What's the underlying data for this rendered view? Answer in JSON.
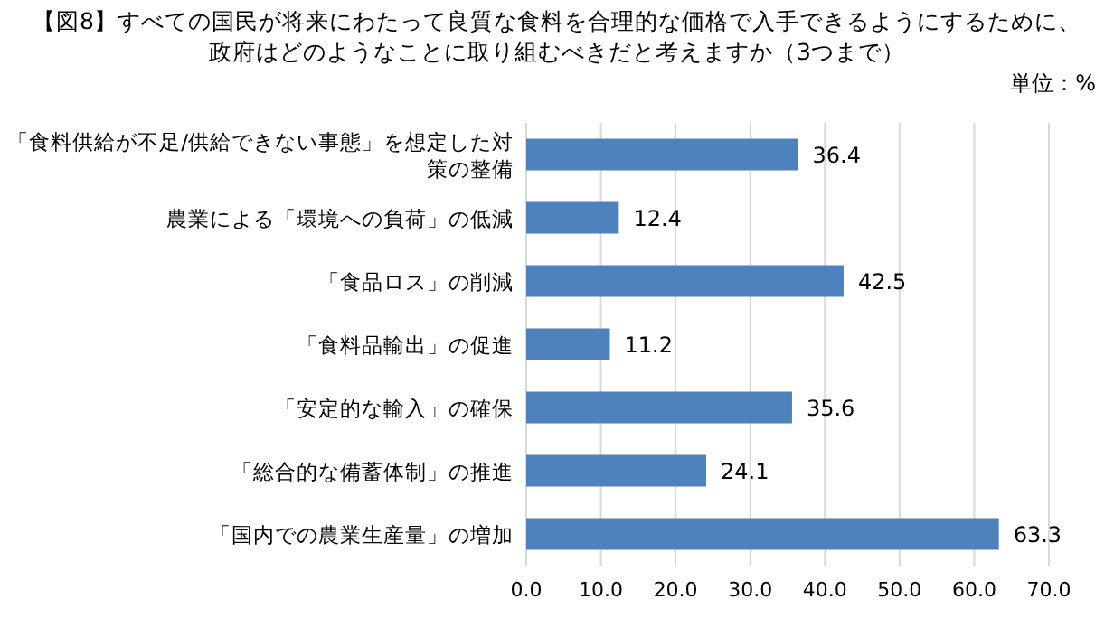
{
  "chart_data": {
    "type": "bar",
    "orientation": "horizontal",
    "title": "【図8】すべての国民が将来にわたって良質な食料を合理的な価格で入手できるようにするために、",
    "subtitle": "政府はどのようなことに取り組むべきだと考えますか（3つまで）",
    "annotations": [
      "単位：%"
    ],
    "categories": [
      "「食料供給が不足/供給できない事態」を想定した対策の整備",
      "農業による「環境への負荷」の低減",
      "「食品ロス」の削減",
      "「食料品輸出」の促進",
      "「安定的な輸入」の確保",
      "「総合的な備蓄体制」の推進",
      "「国内での農業生産量」の増加"
    ],
    "values": [
      36.4,
      12.4,
      42.5,
      11.2,
      35.6,
      24.1,
      63.3
    ],
    "color": "#4f81bd",
    "data_labels": true,
    "xlim": [
      0,
      70
    ],
    "xticks": [
      {
        "value": 0,
        "label": "0.0"
      },
      {
        "value": 10,
        "label": "10.0"
      },
      {
        "value": 20,
        "label": "20.0"
      },
      {
        "value": 30,
        "label": "30.0"
      },
      {
        "value": 40,
        "label": "40.0"
      },
      {
        "value": 50,
        "label": "50.0"
      },
      {
        "value": 60,
        "label": "60.0"
      },
      {
        "value": 70,
        "label": "70.0"
      }
    ],
    "grid": "x"
  }
}
